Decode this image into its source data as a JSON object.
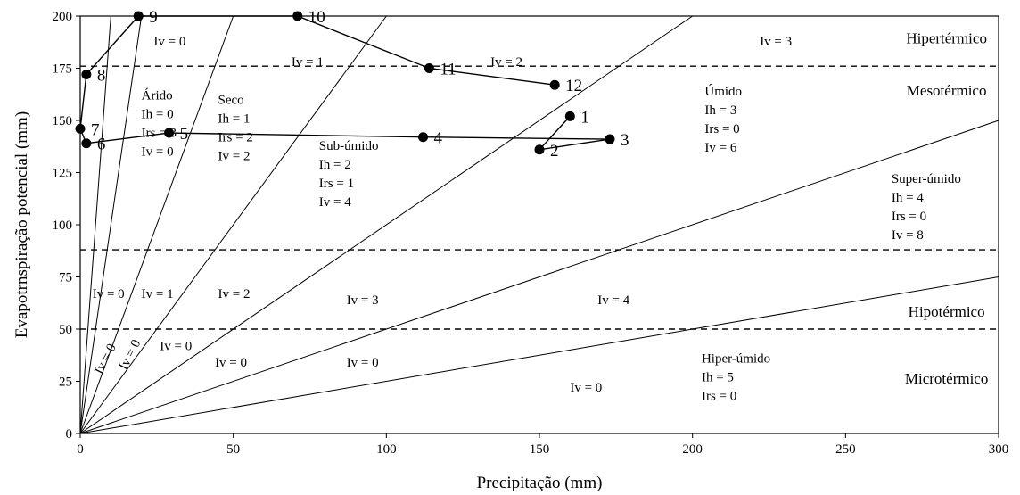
{
  "chart_data": {
    "type": "scatter",
    "xlabel": "Precipitação (mm)",
    "ylabel": "Evapotrnspiração potencial (mm)",
    "xlim": [
      0,
      300
    ],
    "ylim": [
      0,
      200
    ],
    "xticks": [
      "0",
      "50",
      "100",
      "150",
      "200",
      "250",
      "300"
    ],
    "yticks": [
      "0",
      "25",
      "50",
      "75",
      "100",
      "125",
      "150",
      "175",
      "200"
    ],
    "grid": false,
    "series": [
      {
        "labels": [
          "1",
          "2",
          "3",
          "4",
          "5",
          "6",
          "7",
          "8",
          "9",
          "10",
          "11",
          "12"
        ],
        "x": [
          160,
          150,
          173,
          112,
          29,
          2,
          0,
          2,
          19,
          71,
          114,
          155
        ],
        "y": [
          152,
          136,
          141,
          142,
          144,
          139,
          146,
          172,
          200,
          200,
          175,
          167
        ]
      }
    ],
    "boundary_lines_through_origin": [
      {
        "x_at_edge": 10,
        "y_at_edge": 200
      },
      {
        "x_at_edge": 20,
        "y_at_edge": 200
      },
      {
        "x_at_edge": 50,
        "y_at_edge": 200
      },
      {
        "x_at_edge": 100,
        "y_at_edge": 200
      },
      {
        "x_at_edge": 200,
        "y_at_edge": 200
      },
      {
        "x_at_edge": 300,
        "y_at_edge": 150
      },
      {
        "x_at_edge": 300,
        "y_at_edge": 75
      }
    ],
    "thermal_thresholds": [
      176,
      88,
      50
    ],
    "thermal_labels": [
      {
        "text": "Hipertérmico",
        "x": 283,
        "y": 187
      },
      {
        "text": "Mesotérmico",
        "x": 283,
        "y": 162
      },
      {
        "text": "Hipotérmico",
        "x": 283,
        "y": 56
      },
      {
        "text": "Microtérmico",
        "x": 283,
        "y": 24
      }
    ],
    "region_labels": [
      {
        "lines": [
          "Iv = 0"
        ],
        "x": 24,
        "y": 186,
        "rot": 0
      },
      {
        "lines": [
          "Iv = 1"
        ],
        "x": 69,
        "y": 176,
        "rot": 0
      },
      {
        "lines": [
          "Iv = 2"
        ],
        "x": 134,
        "y": 176,
        "rot": 0
      },
      {
        "lines": [
          "Iv = 3"
        ],
        "x": 222,
        "y": 186,
        "rot": 0
      },
      {
        "lines": [
          "Árido",
          "Ih = 0",
          "Irs = 3",
          "Iv = 0"
        ],
        "x": 20,
        "y": 160,
        "rot": 0
      },
      {
        "lines": [
          "Seco",
          "Ih = 1",
          "Irs = 2",
          "Iv = 2"
        ],
        "x": 45,
        "y": 158,
        "rot": 0
      },
      {
        "lines": [
          "Sub-úmido",
          "Ih = 2",
          "Irs = 1",
          "Iv = 4"
        ],
        "x": 78,
        "y": 136,
        "rot": 0
      },
      {
        "lines": [
          "Úmido",
          "Ih = 3",
          "Irs = 0",
          "Iv = 6"
        ],
        "x": 204,
        "y": 162,
        "rot": 0
      },
      {
        "lines": [
          "Super-úmido",
          "Ih = 4",
          "Irs = 0",
          "Iv = 8"
        ],
        "x": 265,
        "y": 120,
        "rot": 0
      },
      {
        "lines": [
          "Hiper-úmido",
          "Ih = 5",
          "Irs = 0"
        ],
        "x": 203,
        "y": 34,
        "rot": 0
      },
      {
        "lines": [
          "Iv = 0"
        ],
        "x": 4,
        "y": 65,
        "rot": 0
      },
      {
        "lines": [
          "Iv = 1"
        ],
        "x": 20,
        "y": 65,
        "rot": 0
      },
      {
        "lines": [
          "Iv = 2"
        ],
        "x": 45,
        "y": 65,
        "rot": 0
      },
      {
        "lines": [
          "Iv = 3"
        ],
        "x": 87,
        "y": 62,
        "rot": 0
      },
      {
        "lines": [
          "Iv = 4"
        ],
        "x": 169,
        "y": 62,
        "rot": 0
      },
      {
        "lines": [
          "Iv = 0"
        ],
        "x": 26,
        "y": 40,
        "rot": 0
      },
      {
        "lines": [
          "Iv = 0"
        ],
        "x": 44,
        "y": 32,
        "rot": 0
      },
      {
        "lines": [
          "Iv = 0"
        ],
        "x": 87,
        "y": 32,
        "rot": 0
      },
      {
        "lines": [
          "Iv = 0"
        ],
        "x": 160,
        "y": 20,
        "rot": 0
      },
      {
        "lines": [
          "Iv = 0"
        ],
        "x": 7,
        "y": 28,
        "rot": -63
      },
      {
        "lines": [
          "Iv = 0"
        ],
        "x": 15,
        "y": 30,
        "rot": -63
      }
    ]
  }
}
